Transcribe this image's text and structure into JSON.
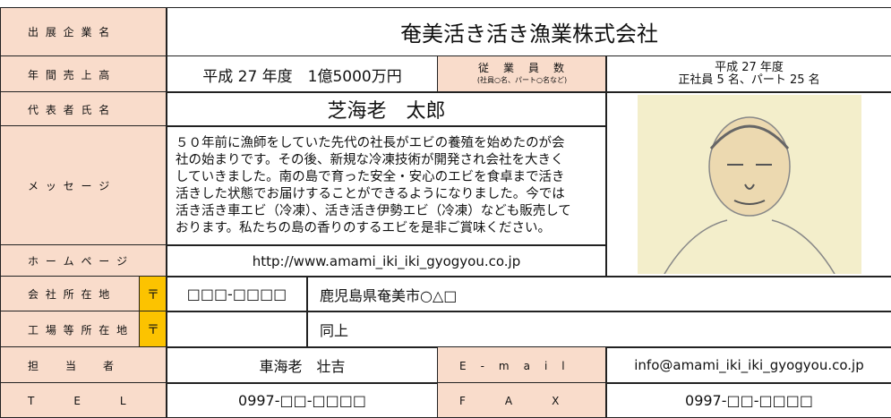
{
  "form": {
    "company": {
      "label": "出 展 企 業 名",
      "value": "奄美活き活き漁業株式会社"
    },
    "sales": {
      "label": "年 間 売 上 高",
      "value": "平成 27 年度　1億5000万円"
    },
    "employees": {
      "label": "従　業　員　数",
      "note": "(社員○名、パート○名など)",
      "year": "平成 27 年度",
      "value": "正社員 5 名、パート 25 名"
    },
    "representative": {
      "label": "代 表 者 氏 名",
      "value": "芝海老　太郎"
    },
    "message": {
      "label": "メ ッ セ ー ジ",
      "lines": [
        "５０年前に漁師をしていた先代の社長がエビの養殖を始めたのが会",
        "社の始まりです。その後、新規な冷凍技術が開発され会社を大きく",
        "していきました。南の島で育った安全・安心のエビを食卓まで活き",
        "活きした状態でお届けすることができるようになりました。今では",
        "活き活き車エビ（冷凍）、活き活き伊勢エビ（冷凍）なども販売して",
        "おります。私たちの島の香りのするエビを是非ご賞味ください。"
      ]
    },
    "homepage": {
      "label": "ホ ー ム ペ ー ジ",
      "value": "http://www.amami_iki_iki_gyogyou.co.jp"
    },
    "address": {
      "label": "会 社 所 在 地",
      "postal_mark": "〒",
      "postal": "□□□-□□□□",
      "value": "鹿児島県奄美市○△□"
    },
    "factory": {
      "label": "工 場 等 所 在 地",
      "postal_mark": "〒",
      "value": "同上"
    },
    "contact": {
      "label": "担　　当　　者",
      "value": "車海老　壮吉"
    },
    "email": {
      "label": "E　-　m　a　i　l",
      "value": "info@amami_iki_iki_gyogyou.co.jp"
    },
    "tel": {
      "label": "T　　　E　　　L",
      "value": "0997-□□-□□□□"
    },
    "fax": {
      "label": "F　　　A　　　X",
      "value": "0997-□□-□□□□"
    }
  }
}
